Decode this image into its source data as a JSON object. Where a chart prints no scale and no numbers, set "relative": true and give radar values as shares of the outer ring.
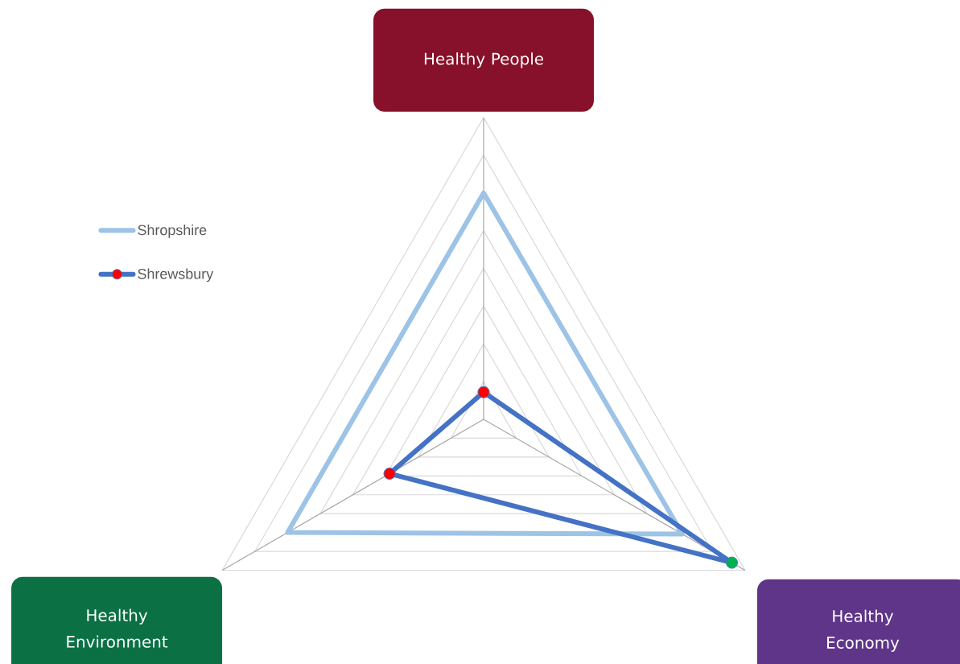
{
  "chart_data": {
    "type": "radar",
    "relative": true,
    "grid": true,
    "legend": "left",
    "categories": [
      "Healthy People",
      "Healthy Economy",
      "Healthy Environment"
    ],
    "colors": [
      "#87102a",
      "#5f3589",
      "#0b7145"
    ],
    "series": [
      {
        "name": "Shropshire",
        "color": "#9dc3e6",
        "marker": "none",
        "values": [
          0.75,
          0.76,
          0.75
        ]
      },
      {
        "name": "Shrewsbury",
        "color": "#4472c4",
        "marker": "circle",
        "colors": [
          "#ff0000",
          "#00b050",
          "#ff0000"
        ],
        "values": [
          0.09,
          0.95,
          0.36
        ]
      }
    ]
  }
}
